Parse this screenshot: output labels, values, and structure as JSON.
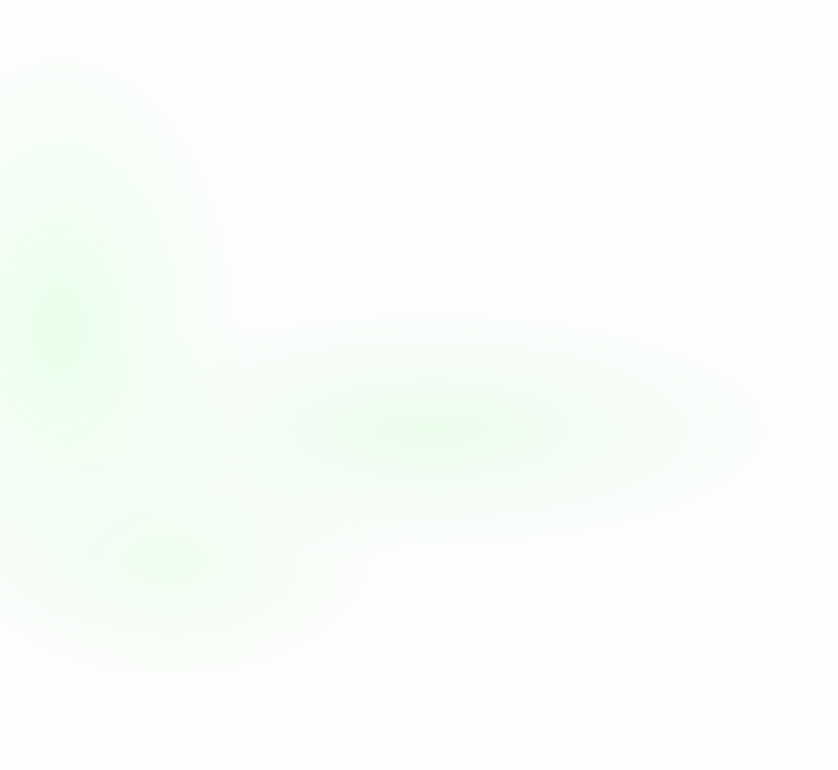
{
  "background": {
    "base_color": "#fdfdfd",
    "glow_color": "#eefdee"
  }
}
